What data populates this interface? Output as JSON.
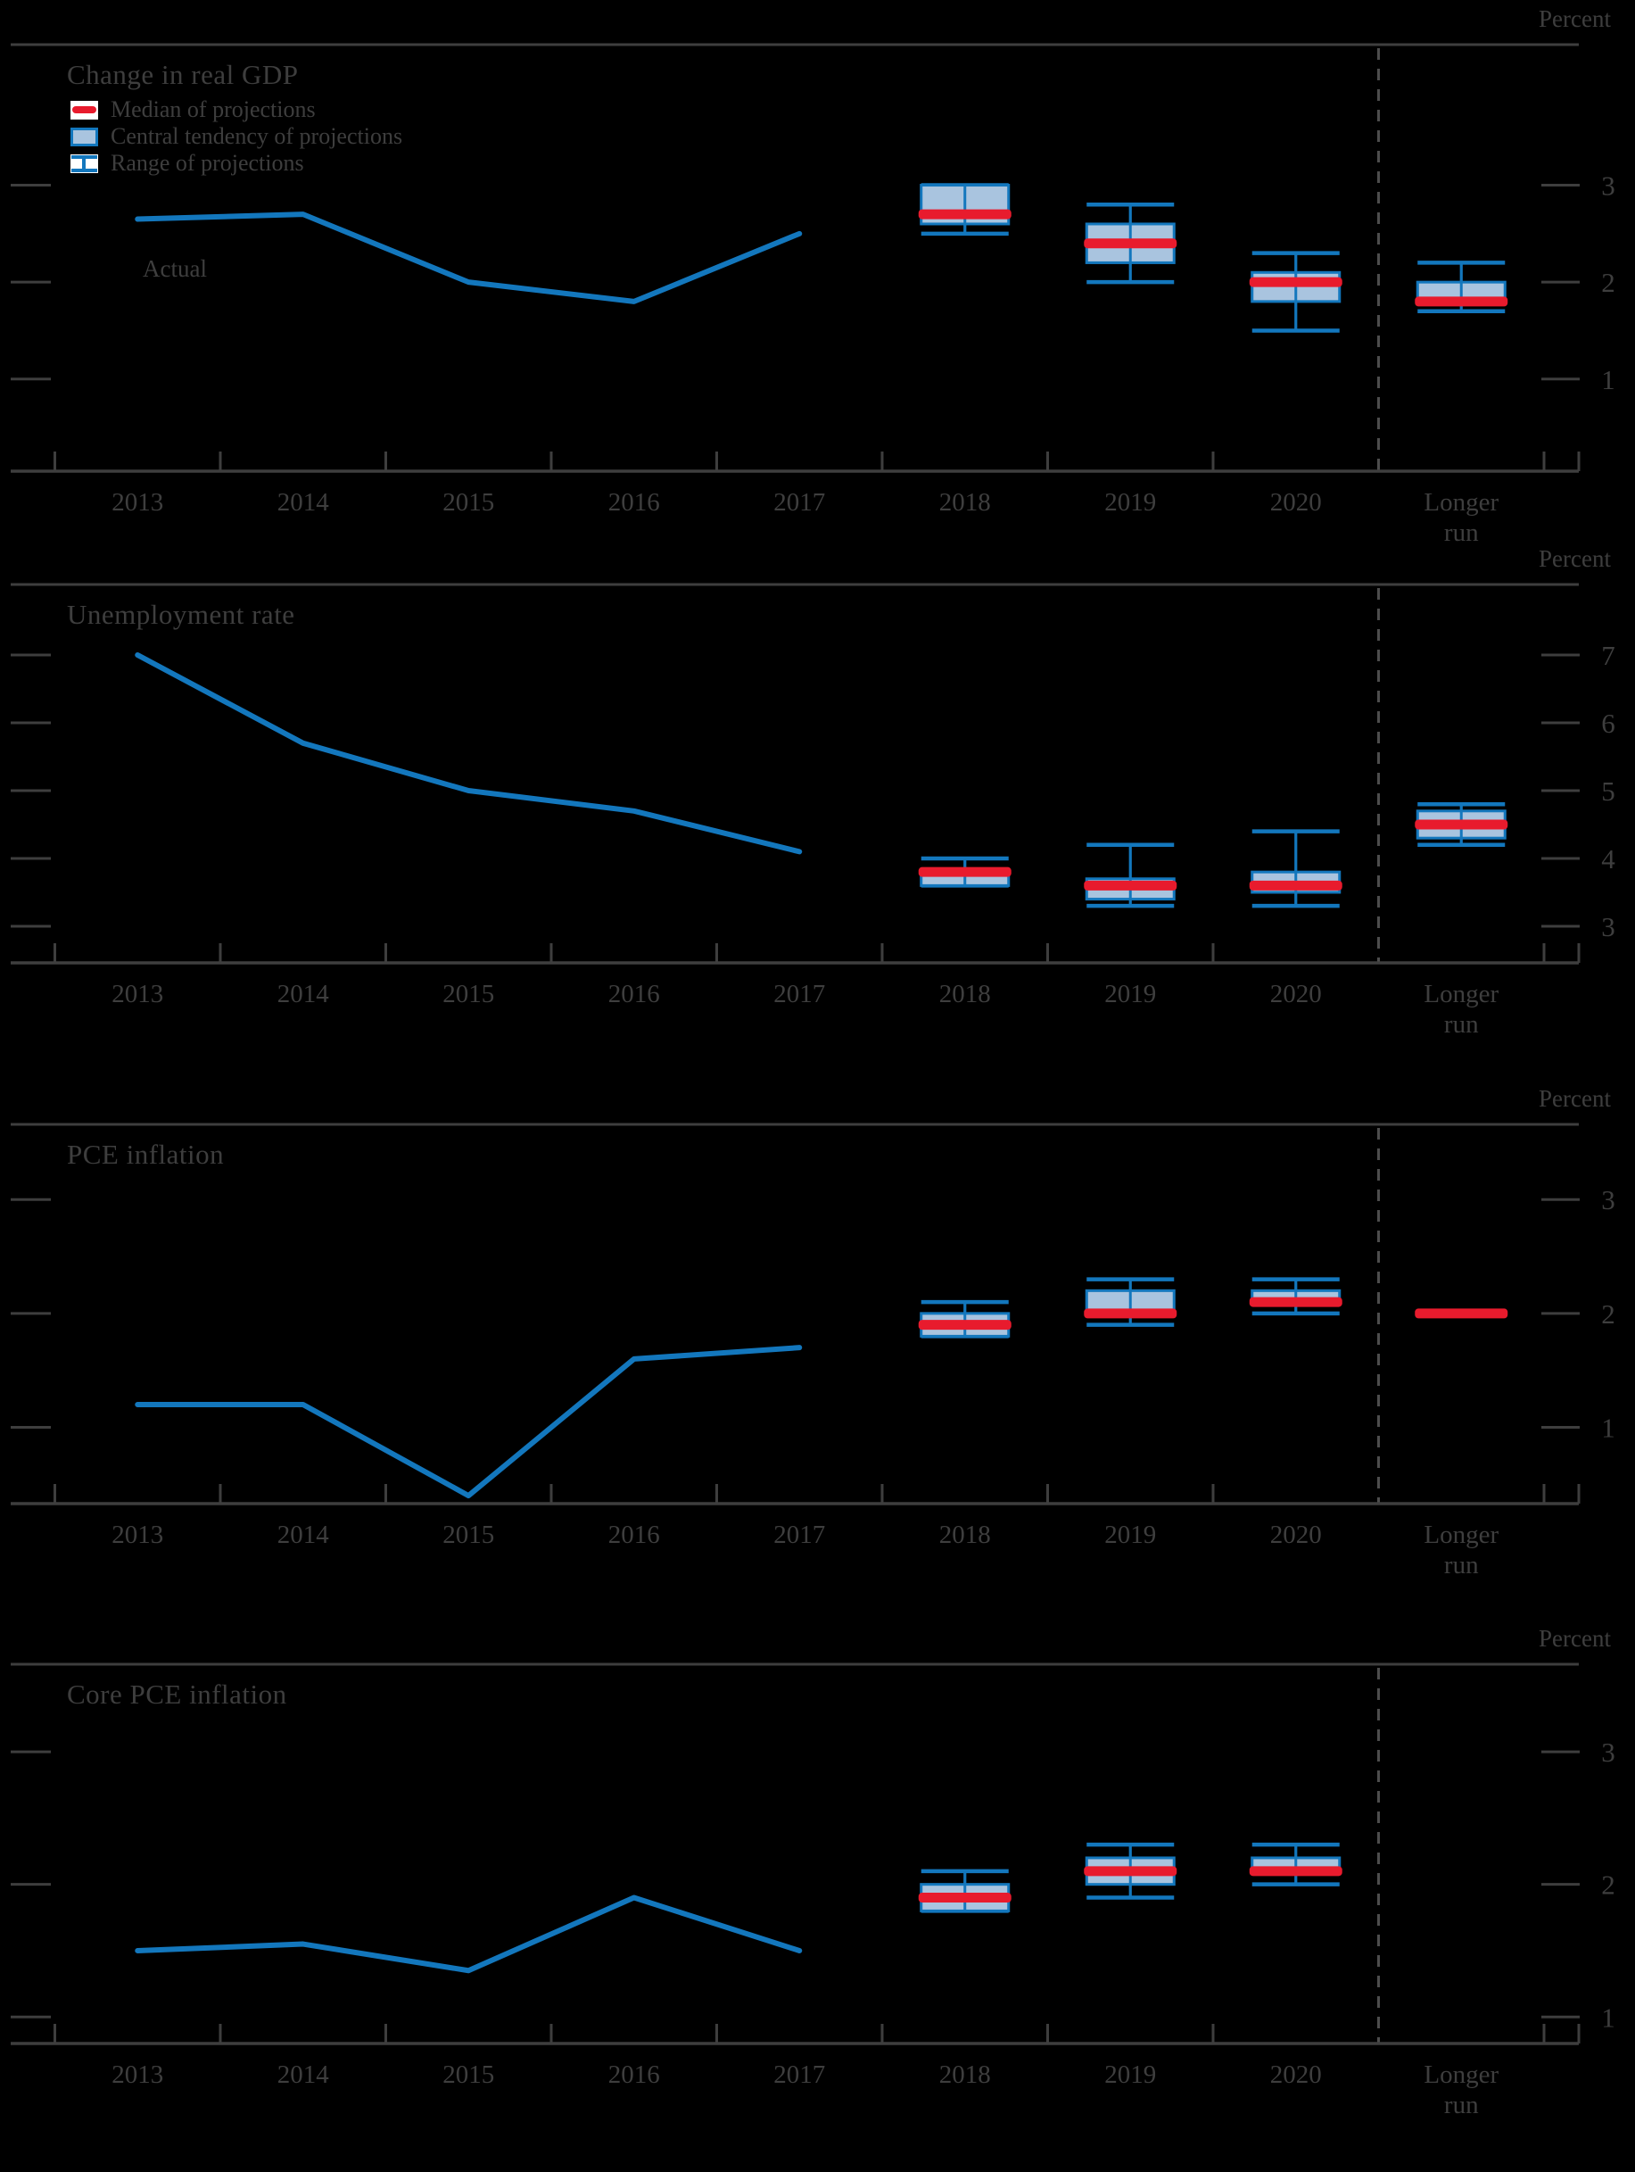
{
  "figure": {
    "percent_label": "Percent",
    "actual_label": "Actual",
    "x_labels": [
      "2013",
      "2014",
      "2015",
      "2016",
      "2017",
      "2018",
      "2019",
      "2020",
      "Longer run"
    ],
    "legend": [
      {
        "id": "median",
        "label": "Median of projections"
      },
      {
        "id": "central-tendency",
        "label": "Central tendency of projections"
      },
      {
        "id": "range",
        "label": "Range of projections"
      }
    ],
    "colors": {
      "background": "#000000",
      "text": "#3e3e3e",
      "axis": "#3e3e3e",
      "actual_line_blue": "#1377bd",
      "central_tendency_fill": "#a9c4df",
      "median_red": "#e81b2d",
      "dashed_separator": "#4d4d4d",
      "legend_icon_background": "#ffffff"
    }
  },
  "chart_data": [
    {
      "type": "line+boxplot",
      "key": "gdp",
      "title": "Change in real GDP",
      "ylabel": "Percent",
      "ylim": [
        0.05,
        4.45
      ],
      "yticks": [
        1,
        2,
        3
      ],
      "actual": {
        "label": "Actual",
        "years": [
          2013,
          2014,
          2015,
          2016,
          2017
        ],
        "values": [
          2.65,
          2.7,
          2.0,
          1.8,
          2.5
        ]
      },
      "projections": [
        {
          "period": "2018",
          "median": 2.7,
          "central_tendency": [
            2.6,
            3.0
          ],
          "range": [
            2.5,
            3.0
          ]
        },
        {
          "period": "2019",
          "median": 2.4,
          "central_tendency": [
            2.2,
            2.6
          ],
          "range": [
            2.0,
            2.8
          ]
        },
        {
          "period": "2020",
          "median": 2.0,
          "central_tendency": [
            1.8,
            2.1
          ],
          "range": [
            1.5,
            2.3
          ]
        },
        {
          "period": "Longer run",
          "median": 1.8,
          "central_tendency": [
            1.8,
            2.0
          ],
          "range": [
            1.7,
            2.2
          ]
        }
      ]
    },
    {
      "type": "line+boxplot",
      "key": "unemployment",
      "title": "Unemployment rate",
      "ylabel": "Percent",
      "ylim": [
        2.46,
        8.04
      ],
      "yticks": [
        3,
        4,
        5,
        6,
        7
      ],
      "actual": {
        "label": "Actual",
        "years": [
          2013,
          2014,
          2015,
          2016,
          2017
        ],
        "values": [
          7.0,
          5.7,
          5.0,
          4.7,
          4.1
        ]
      },
      "projections": [
        {
          "period": "2018",
          "median": 3.8,
          "central_tendency": [
            3.6,
            3.8
          ],
          "range": [
            3.6,
            4.0
          ]
        },
        {
          "period": "2019",
          "median": 3.6,
          "central_tendency": [
            3.4,
            3.7
          ],
          "range": [
            3.3,
            4.2
          ]
        },
        {
          "period": "2020",
          "median": 3.6,
          "central_tendency": [
            3.5,
            3.8
          ],
          "range": [
            3.3,
            4.4
          ]
        },
        {
          "period": "Longer run",
          "median": 4.5,
          "central_tendency": [
            4.3,
            4.7
          ],
          "range": [
            4.2,
            4.8
          ]
        }
      ]
    },
    {
      "type": "line+boxplot",
      "key": "pce-inflation",
      "title": "PCE inflation",
      "ylabel": "Percent",
      "ylim": [
        0.33,
        3.66
      ],
      "yticks": [
        1,
        2,
        3
      ],
      "actual": {
        "label": "Actual",
        "years": [
          2013,
          2014,
          2015,
          2016,
          2017
        ],
        "values": [
          1.2,
          1.2,
          0.4,
          1.6,
          1.7
        ]
      },
      "projections": [
        {
          "period": "2018",
          "median": 1.9,
          "central_tendency": [
            1.8,
            2.0
          ],
          "range": [
            1.8,
            2.1
          ]
        },
        {
          "period": "2019",
          "median": 2.0,
          "central_tendency": [
            2.0,
            2.2
          ],
          "range": [
            1.9,
            2.3
          ]
        },
        {
          "period": "2020",
          "median": 2.1,
          "central_tendency": [
            2.1,
            2.2
          ],
          "range": [
            2.0,
            2.3
          ]
        },
        {
          "period": "Longer run",
          "median": 2.0,
          "central_tendency": null,
          "range": null
        }
      ]
    },
    {
      "type": "line+boxplot",
      "key": "core-pce-inflation",
      "title": "Core PCE inflation",
      "ylabel": "Percent",
      "ylim": [
        0.8,
        3.66
      ],
      "yticks": [
        1,
        2,
        3
      ],
      "actual": {
        "label": "Actual",
        "years": [
          2013,
          2014,
          2015,
          2016,
          2017
        ],
        "values": [
          1.5,
          1.55,
          1.35,
          1.9,
          1.5
        ]
      },
      "projections": [
        {
          "period": "2018",
          "median": 1.9,
          "central_tendency": [
            1.8,
            2.0
          ],
          "range": [
            1.8,
            2.1
          ]
        },
        {
          "period": "2019",
          "median": 2.1,
          "central_tendency": [
            2.0,
            2.2
          ],
          "range": [
            1.9,
            2.3
          ]
        },
        {
          "period": "2020",
          "median": 2.1,
          "central_tendency": [
            2.1,
            2.2
          ],
          "range": [
            2.0,
            2.3
          ]
        }
      ]
    }
  ]
}
